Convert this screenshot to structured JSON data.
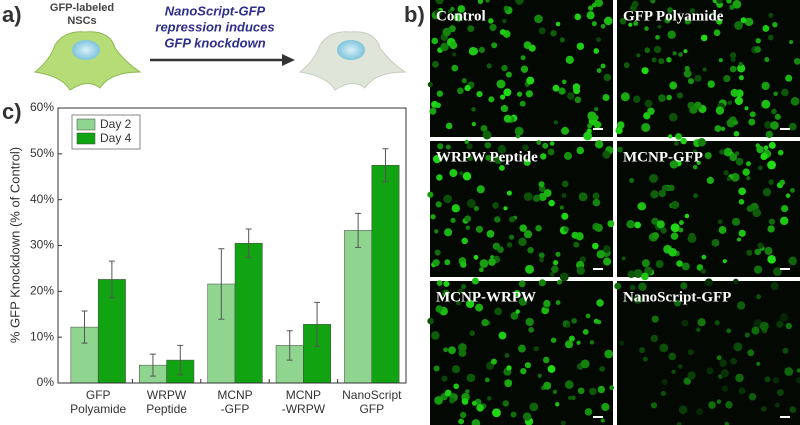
{
  "panels": {
    "a_label": "a)",
    "b_label": "b)",
    "c_label": "c)",
    "cell_label": [
      "GFP-labeled",
      "NSCs"
    ],
    "arrow_text": [
      "NanoScript-GFP",
      "repression induces",
      "GFP knockdown"
    ],
    "images": [
      "Control",
      "GFP Polyamide",
      "WRPW Peptide",
      "MCNP-GFP",
      "MCNP-WRPW",
      "NanoScript-GFP"
    ]
  },
  "chart_data": {
    "type": "bar",
    "y_label": "% GFP Knockdown (% of Control)",
    "categories": [
      [
        "GFP",
        "Polyamide"
      ],
      [
        "WRPW",
        "Peptide"
      ],
      [
        "MCNP",
        "-GFP"
      ],
      [
        "MCNP",
        "-WRPW"
      ],
      [
        "NanoScript",
        "GFP"
      ]
    ],
    "series": [
      {
        "name": "Day 2",
        "color": "#8fd48f",
        "values": [
          12.2,
          3.9,
          21.6,
          8.2,
          33.3
        ],
        "errors": [
          3.5,
          2.4,
          7.7,
          3.2,
          3.7
        ]
      },
      {
        "name": "Day 4",
        "color": "#12a312",
        "values": [
          22.6,
          5.0,
          30.5,
          12.8,
          47.5
        ],
        "errors": [
          4.0,
          3.2,
          3.1,
          4.8,
          3.6
        ]
      }
    ],
    "ylim": [
      0,
      60
    ],
    "yticks": [
      {
        "value": 0,
        "label": "0%"
      },
      {
        "value": 10,
        "label": "10%"
      },
      {
        "value": 20,
        "label": "20%"
      },
      {
        "value": 30,
        "label": "30%"
      },
      {
        "value": 40,
        "label": "40%"
      },
      {
        "value": 50,
        "label": "50%"
      },
      {
        "value": 60,
        "label": "60%"
      }
    ],
    "legend": "upper left"
  }
}
